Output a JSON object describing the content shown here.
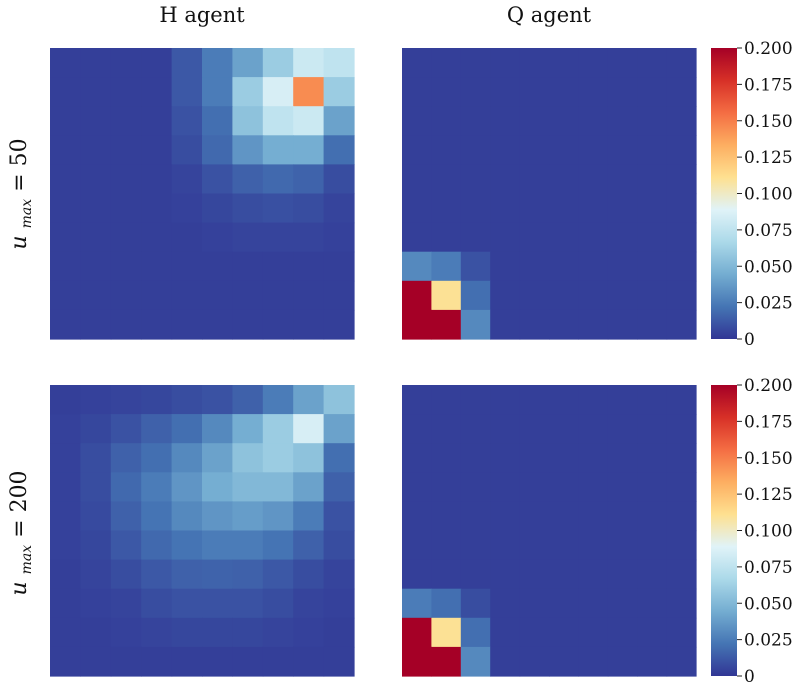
{
  "figure": {
    "col_titles": [
      "H agent",
      "Q agent"
    ],
    "row_labels": [
      {
        "var": "u",
        "sub": "max",
        "rhs": "= 50"
      },
      {
        "var": "u",
        "sub": "max",
        "rhs": "= 200"
      }
    ]
  },
  "chart_data": [
    {
      "type": "heatmap",
      "name": "H agent, u_max = 50",
      "rows": 10,
      "cols": 10,
      "vmin": 0,
      "vmax": 0.2,
      "values": [
        [
          0.003,
          0.003,
          0.003,
          0.003,
          0.012,
          0.025,
          0.04,
          0.06,
          0.08,
          0.075
        ],
        [
          0.003,
          0.003,
          0.003,
          0.003,
          0.012,
          0.025,
          0.06,
          0.085,
          0.145,
          0.06
        ],
        [
          0.003,
          0.003,
          0.003,
          0.003,
          0.01,
          0.02,
          0.055,
          0.075,
          0.08,
          0.04
        ],
        [
          0.003,
          0.003,
          0.003,
          0.003,
          0.008,
          0.018,
          0.035,
          0.045,
          0.045,
          0.02
        ],
        [
          0.003,
          0.003,
          0.003,
          0.003,
          0.005,
          0.01,
          0.015,
          0.018,
          0.016,
          0.008
        ],
        [
          0.003,
          0.003,
          0.003,
          0.003,
          0.004,
          0.006,
          0.008,
          0.009,
          0.008,
          0.005
        ],
        [
          0.003,
          0.003,
          0.003,
          0.003,
          0.003,
          0.004,
          0.005,
          0.005,
          0.005,
          0.004
        ],
        [
          0.003,
          0.003,
          0.003,
          0.003,
          0.003,
          0.003,
          0.003,
          0.003,
          0.003,
          0.003
        ],
        [
          0.003,
          0.003,
          0.003,
          0.003,
          0.003,
          0.003,
          0.003,
          0.003,
          0.003,
          0.003
        ],
        [
          0.003,
          0.003,
          0.003,
          0.003,
          0.003,
          0.003,
          0.003,
          0.003,
          0.003,
          0.003
        ]
      ]
    },
    {
      "type": "heatmap",
      "name": "Q agent, u_max = 50",
      "rows": 10,
      "cols": 10,
      "vmin": 0,
      "vmax": 0.2,
      "values": [
        [
          0.003,
          0.003,
          0.003,
          0.003,
          0.003,
          0.003,
          0.003,
          0.003,
          0.003,
          0.003
        ],
        [
          0.003,
          0.003,
          0.003,
          0.003,
          0.003,
          0.003,
          0.003,
          0.003,
          0.003,
          0.003
        ],
        [
          0.003,
          0.003,
          0.003,
          0.003,
          0.003,
          0.003,
          0.003,
          0.003,
          0.003,
          0.003
        ],
        [
          0.003,
          0.003,
          0.003,
          0.003,
          0.003,
          0.003,
          0.003,
          0.003,
          0.003,
          0.003
        ],
        [
          0.003,
          0.003,
          0.003,
          0.003,
          0.003,
          0.003,
          0.003,
          0.003,
          0.003,
          0.003
        ],
        [
          0.003,
          0.003,
          0.003,
          0.003,
          0.003,
          0.003,
          0.003,
          0.003,
          0.003,
          0.003
        ],
        [
          0.003,
          0.003,
          0.003,
          0.003,
          0.003,
          0.003,
          0.003,
          0.003,
          0.003,
          0.003
        ],
        [
          0.03,
          0.025,
          0.01,
          0.003,
          0.003,
          0.003,
          0.003,
          0.003,
          0.003,
          0.003
        ],
        [
          0.2,
          0.11,
          0.02,
          0.003,
          0.003,
          0.003,
          0.003,
          0.003,
          0.003,
          0.003
        ],
        [
          0.2,
          0.2,
          0.03,
          0.003,
          0.003,
          0.003,
          0.003,
          0.003,
          0.003,
          0.003
        ]
      ]
    },
    {
      "type": "heatmap",
      "name": "H agent, u_max = 200",
      "rows": 10,
      "cols": 10,
      "vmin": 0,
      "vmax": 0.2,
      "values": [
        [
          0.003,
          0.004,
          0.005,
          0.006,
          0.008,
          0.01,
          0.015,
          0.025,
          0.04,
          0.055
        ],
        [
          0.004,
          0.006,
          0.01,
          0.015,
          0.02,
          0.03,
          0.045,
          0.06,
          0.085,
          0.04
        ],
        [
          0.004,
          0.008,
          0.015,
          0.02,
          0.03,
          0.04,
          0.055,
          0.06,
          0.055,
          0.02
        ],
        [
          0.004,
          0.008,
          0.018,
          0.025,
          0.035,
          0.045,
          0.05,
          0.05,
          0.04,
          0.015
        ],
        [
          0.004,
          0.007,
          0.015,
          0.022,
          0.03,
          0.035,
          0.038,
          0.035,
          0.025,
          0.01
        ],
        [
          0.004,
          0.006,
          0.012,
          0.018,
          0.022,
          0.025,
          0.025,
          0.022,
          0.015,
          0.008
        ],
        [
          0.003,
          0.005,
          0.008,
          0.012,
          0.015,
          0.016,
          0.015,
          0.012,
          0.008,
          0.005
        ],
        [
          0.003,
          0.004,
          0.005,
          0.008,
          0.01,
          0.01,
          0.01,
          0.008,
          0.005,
          0.004
        ],
        [
          0.003,
          0.003,
          0.004,
          0.005,
          0.006,
          0.006,
          0.006,
          0.005,
          0.004,
          0.003
        ],
        [
          0.003,
          0.003,
          0.003,
          0.003,
          0.003,
          0.003,
          0.003,
          0.003,
          0.003,
          0.003
        ]
      ]
    },
    {
      "type": "heatmap",
      "name": "Q agent, u_max = 200",
      "rows": 10,
      "cols": 10,
      "vmin": 0,
      "vmax": 0.2,
      "values": [
        [
          0.003,
          0.003,
          0.003,
          0.003,
          0.003,
          0.003,
          0.003,
          0.003,
          0.003,
          0.003
        ],
        [
          0.003,
          0.003,
          0.003,
          0.003,
          0.003,
          0.003,
          0.003,
          0.003,
          0.003,
          0.003
        ],
        [
          0.003,
          0.003,
          0.003,
          0.003,
          0.003,
          0.003,
          0.003,
          0.003,
          0.003,
          0.003
        ],
        [
          0.003,
          0.003,
          0.003,
          0.003,
          0.003,
          0.003,
          0.003,
          0.003,
          0.003,
          0.003
        ],
        [
          0.003,
          0.003,
          0.003,
          0.003,
          0.003,
          0.003,
          0.003,
          0.003,
          0.003,
          0.003
        ],
        [
          0.003,
          0.003,
          0.003,
          0.003,
          0.003,
          0.003,
          0.003,
          0.003,
          0.003,
          0.003
        ],
        [
          0.003,
          0.003,
          0.003,
          0.003,
          0.003,
          0.003,
          0.003,
          0.003,
          0.003,
          0.003
        ],
        [
          0.025,
          0.02,
          0.008,
          0.003,
          0.003,
          0.003,
          0.003,
          0.003,
          0.003,
          0.003
        ],
        [
          0.2,
          0.11,
          0.02,
          0.003,
          0.003,
          0.003,
          0.003,
          0.003,
          0.003,
          0.003
        ],
        [
          0.2,
          0.2,
          0.03,
          0.003,
          0.003,
          0.003,
          0.003,
          0.003,
          0.003,
          0.003
        ]
      ]
    }
  ],
  "colorbar": {
    "ticks": [
      0,
      0.025,
      0.05,
      0.075,
      0.1,
      0.125,
      0.15,
      0.175,
      0.2
    ],
    "tick_labels": [
      "0",
      "0.025",
      "0.050",
      "0.075",
      "0.100",
      "0.125",
      "0.150",
      "0.175",
      "0.200"
    ],
    "colormap": [
      "#313695",
      "#4575b4",
      "#74add1",
      "#abd9e9",
      "#e0f3f8",
      "#fee090",
      "#fdae61",
      "#f46d43",
      "#d73027",
      "#a50026"
    ]
  }
}
